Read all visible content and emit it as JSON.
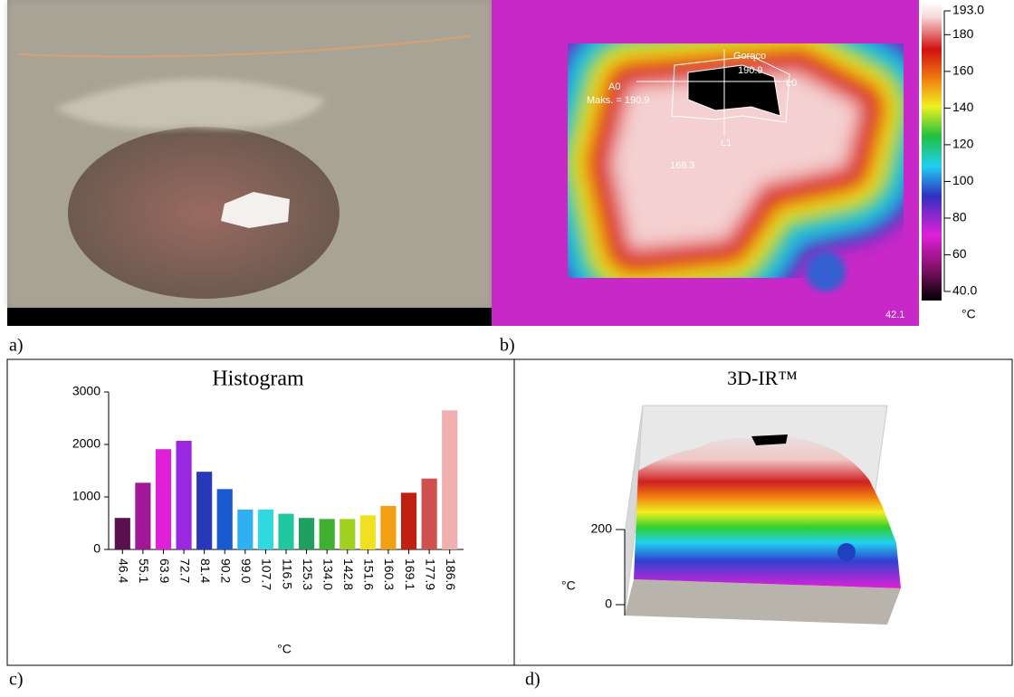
{
  "panels": {
    "a": "a)",
    "b": "b)",
    "c": "c)",
    "d": "d)"
  },
  "thermal": {
    "hot_label": "Gorąco",
    "hot_value": "190.9",
    "area_label": "A0",
    "max_label": "Maks. = 190.9",
    "line0": "L0",
    "line1": "L1",
    "spot_value": "168.3",
    "corner_value": "42.1",
    "colorbar": {
      "clim": [
        40,
        193
      ],
      "ticks": [
        {
          "value": 40,
          "label": "40.0"
        },
        60,
        80,
        100,
        120,
        140,
        160,
        180,
        {
          "value": 193,
          "label": "193.0"
        }
      ],
      "unit": "°C"
    }
  },
  "surface": {
    "title": "3D-IR™",
    "zticks": [
      0,
      200
    ],
    "zlabel": "°C"
  },
  "chart_data": {
    "type": "bar",
    "title": "Histogram",
    "xlabel": "°C",
    "categories": [
      "46.4",
      "55.1",
      "63.9",
      "72.7",
      "81.4",
      "90.2",
      "99.0",
      "107.7",
      "116.5",
      "125.3",
      "134.0",
      "142.8",
      "151.6",
      "160.3",
      "169.1",
      "177.9",
      "186.6"
    ],
    "values": [
      600,
      1270,
      1910,
      2070,
      1480,
      1150,
      760,
      760,
      680,
      600,
      580,
      580,
      650,
      830,
      1080,
      1350,
      2650
    ],
    "colors": [
      "#5a0f4e",
      "#a01898",
      "#e020d8",
      "#9a28e0",
      "#2838b8",
      "#1a5ad0",
      "#30b0f0",
      "#30d8e0",
      "#20c8a0",
      "#20a060",
      "#40b030",
      "#a0d020",
      "#f0e020",
      "#f0a010",
      "#c02010",
      "#d05050",
      "#f0b0b0"
    ],
    "ylim": [
      0,
      3000
    ],
    "yticks": [
      0,
      1000,
      2000,
      3000
    ]
  }
}
